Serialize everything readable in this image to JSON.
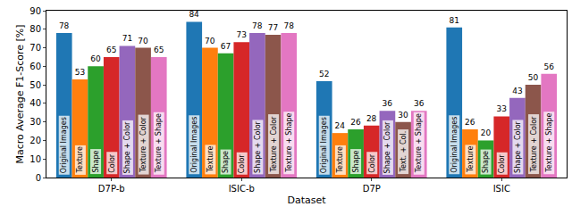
{
  "chart_data": {
    "type": "bar",
    "x_label": "Dataset",
    "y_label": "Macro Average F1-Score [%]",
    "categories": [
      "D7P-b",
      "ISIC-b",
      "D7P",
      "ISIC"
    ],
    "series": [
      {
        "name": "Original Images",
        "color": "#1f77b4",
        "values": [
          78,
          84,
          52,
          81
        ],
        "bar_labels": [
          "Original Images",
          "Original Images",
          "Original Images",
          "Original Images"
        ]
      },
      {
        "name": "Texture",
        "color": "#ff7f0e",
        "values": [
          53,
          70,
          24,
          26
        ],
        "bar_labels": [
          "Texture",
          "Texture",
          "Texture",
          "Texture"
        ]
      },
      {
        "name": "Shape",
        "color": "#2ca02c",
        "values": [
          60,
          67,
          26,
          20
        ],
        "bar_labels": [
          "Shape",
          "Shape",
          "Shape",
          "Shape"
        ]
      },
      {
        "name": "Color",
        "color": "#d62728",
        "values": [
          65,
          73,
          28,
          33
        ],
        "bar_labels": [
          "Color",
          "Color",
          "Color",
          "Color"
        ]
      },
      {
        "name": "Shape + Color",
        "color": "#9467bd",
        "values": [
          71,
          78,
          36,
          43
        ],
        "bar_labels": [
          "Shape + Color",
          "Shape + Color",
          "Shape + Color",
          "Shape + Color"
        ]
      },
      {
        "name": "Texture + Color",
        "color": "#8c564b",
        "values": [
          70,
          77,
          30,
          50
        ],
        "bar_labels": [
          "Texture + Color",
          "Texture + Color",
          "Text. + Col.",
          "Texture + Color"
        ]
      },
      {
        "name": "Texture + Shape",
        "color": "#e377c2",
        "values": [
          65,
          78,
          36,
          56
        ],
        "bar_labels": [
          "Texture + Shape",
          "Texture + Shape",
          "Texture + Shape",
          "Texture + Shape"
        ]
      }
    ],
    "ylim": [
      0,
      90
    ],
    "yticks": [
      0,
      10,
      20,
      30,
      40,
      50,
      60,
      70,
      80,
      90
    ],
    "grid": false,
    "data_labels": true
  }
}
